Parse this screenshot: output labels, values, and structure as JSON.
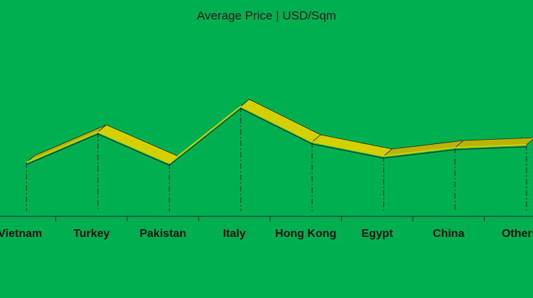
{
  "chart_data": {
    "type": "line3d",
    "title": "Average Price | USD/Sqm",
    "categories": [
      "Vietnam",
      "Turkey",
      "Pakistan",
      "Italy",
      "Hong Kong",
      "Egypt",
      "China",
      "Others"
    ],
    "values": [
      76,
      119,
      75,
      155,
      105,
      85,
      97,
      101
    ],
    "color": "#d4d000",
    "ylim": [
      0,
      200
    ],
    "drop_lines": true
  }
}
